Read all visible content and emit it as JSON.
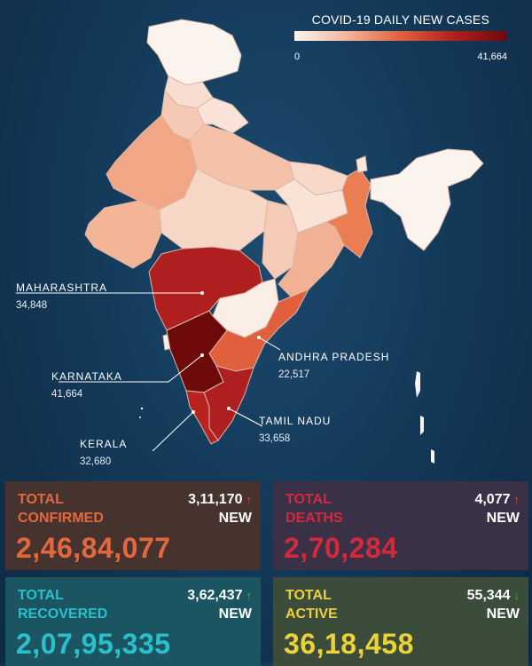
{
  "legend": {
    "title": "COVID-19 DAILY NEW CASES",
    "min": "0",
    "max": "41,664",
    "colors": [
      "#fbf3ee",
      "#f4b59a",
      "#e0603e",
      "#b01f1f",
      "#6e0a0a"
    ]
  },
  "callouts": [
    {
      "id": "maharashtra",
      "name": "MAHARASHTRA",
      "value": "34,848",
      "color": "#b01f1f"
    },
    {
      "id": "karnataka",
      "name": "KARNATAKA",
      "value": "41,664",
      "color": "#6e0a0a"
    },
    {
      "id": "kerala",
      "name": "KERALA",
      "value": "32,680",
      "color": "#b8231f"
    },
    {
      "id": "andhra-pradesh",
      "name": "ANDHRA PRADESH",
      "value": "22,517",
      "color": "#e0603e"
    },
    {
      "id": "tamil-nadu",
      "name": "TAMIL NADU",
      "value": "33,658",
      "color": "#b01f1f"
    }
  ],
  "stats": {
    "confirmed": {
      "label_line1": "TOTAL",
      "label_line2": "CONFIRMED",
      "new_value": "3,11,170",
      "new_label": "NEW",
      "arrow": "↑",
      "total": "2,46,84,077"
    },
    "deaths": {
      "label_line1": "TOTAL",
      "label_line2": "DEATHS",
      "new_value": "4,077",
      "new_label": "NEW",
      "arrow": "↑",
      "total": "2,70,284"
    },
    "recovered": {
      "label_line1": "TOTAL",
      "label_line2": "RECOVERED",
      "new_value": "3,62,437",
      "new_label": "NEW",
      "arrow": "↑",
      "total": "2,07,95,335"
    },
    "active": {
      "label_line1": "TOTAL",
      "label_line2": "ACTIVE",
      "new_value": "55,344",
      "new_label": "NEW",
      "arrow": "↓",
      "total": "36,18,458"
    }
  }
}
